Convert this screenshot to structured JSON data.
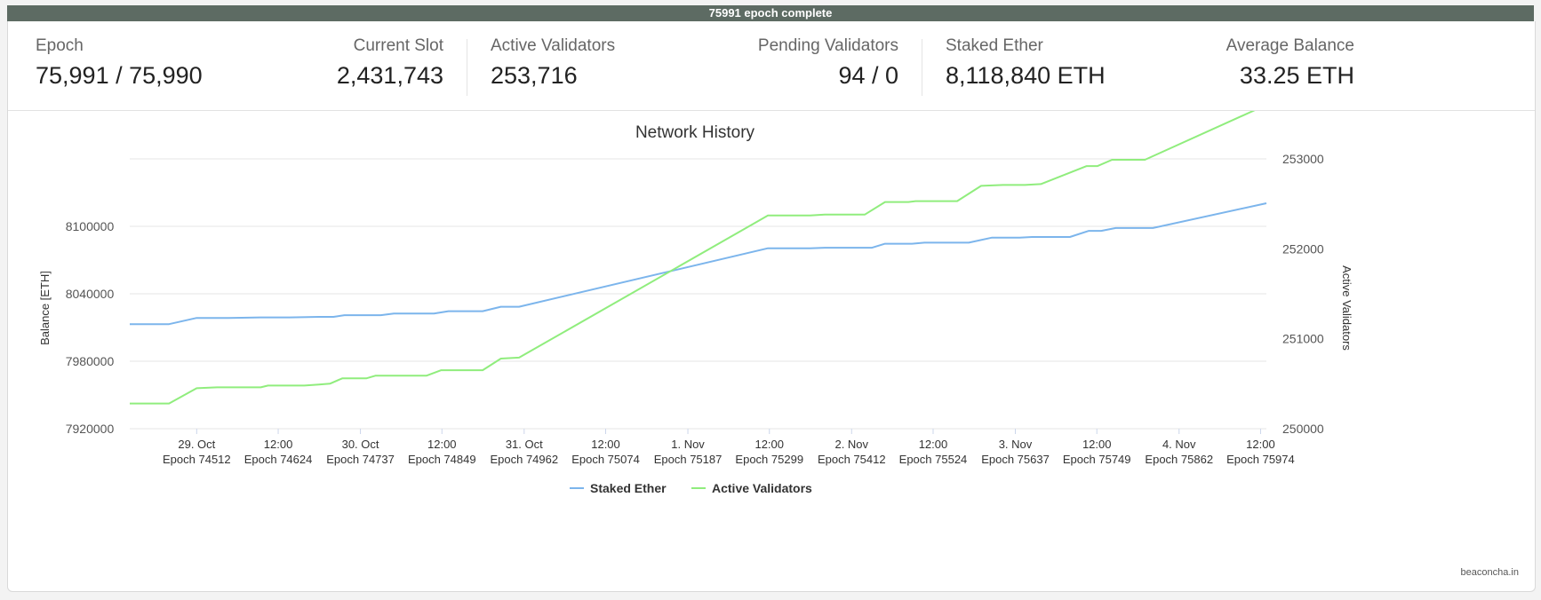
{
  "progress": {
    "label": "75991 epoch complete",
    "fraction": 1.0
  },
  "stats": {
    "epoch": {
      "label": "Epoch",
      "value": "75,991 / 75,990"
    },
    "current_slot": {
      "label": "Current Slot",
      "value": "2,431,743"
    },
    "active_validators": {
      "label": "Active Validators",
      "value": "253,716"
    },
    "pending_validators": {
      "label": "Pending Validators",
      "value": "94 / 0"
    },
    "staked_ether": {
      "label": "Staked Ether",
      "value": "8,118,840 ETH"
    },
    "average_balance": {
      "label": "Average Balance",
      "value": "33.25 ETH"
    }
  },
  "credit": "beaconcha.in",
  "chart_data": {
    "type": "line",
    "title": "Network History",
    "ylabel": "Balance [ETH]",
    "y2label": "Active Validators",
    "ylim": [
      7920000,
      8160000
    ],
    "y_ticks": [
      "7920000",
      "7980000",
      "8040000",
      "8100000"
    ],
    "y_tick_values": [
      7920000,
      7980000,
      8040000,
      8100000
    ],
    "y2lim": [
      250000,
      253000
    ],
    "y2_ticks": [
      "250000",
      "251000",
      "252000",
      "253000"
    ],
    "y2_tick_values": [
      250000,
      251000,
      252000,
      253000
    ],
    "x_tick_epochs": [
      74512,
      74624,
      74737,
      74849,
      74962,
      75074,
      75187,
      75299,
      75412,
      75524,
      75637,
      75749,
      75862,
      75974
    ],
    "x_tick_dates": [
      "29. Oct",
      "12:00",
      "30. Oct",
      "12:00",
      "31. Oct",
      "12:00",
      "1. Nov",
      "12:00",
      "2. Nov",
      "12:00",
      "3. Nov",
      "12:00",
      "4. Nov",
      "12:00"
    ],
    "x_tick_labels": [
      "Epoch 74512",
      "Epoch 74624",
      "Epoch 74737",
      "Epoch 74849",
      "Epoch 74962",
      "Epoch 75074",
      "Epoch 75187",
      "Epoch 75299",
      "Epoch 75412",
      "Epoch 75524",
      "Epoch 75637",
      "Epoch 75749",
      "Epoch 75862",
      "Epoch 75974"
    ],
    "xlim": [
      74420,
      75982
    ],
    "grid": true,
    "legend_position": "bottom-center",
    "series": [
      {
        "name": "Staked Ether",
        "axis": "left",
        "color": "#7cb5ec",
        "points": [
          [
            74420,
            8013000
          ],
          [
            74474,
            8013000
          ],
          [
            74512,
            8018500
          ],
          [
            74556,
            8018500
          ],
          [
            74600,
            8019000
          ],
          [
            74640,
            8019000
          ],
          [
            74680,
            8019500
          ],
          [
            74700,
            8019500
          ],
          [
            74715,
            8021000
          ],
          [
            74765,
            8021000
          ],
          [
            74783,
            8022500
          ],
          [
            74838,
            8022500
          ],
          [
            74858,
            8024500
          ],
          [
            74905,
            8024500
          ],
          [
            74930,
            8028500
          ],
          [
            74955,
            8028500
          ],
          [
            75297,
            8080500
          ],
          [
            75355,
            8080500
          ],
          [
            75375,
            8081000
          ],
          [
            75440,
            8081000
          ],
          [
            75458,
            8084500
          ],
          [
            75495,
            8084500
          ],
          [
            75512,
            8085500
          ],
          [
            75573,
            8085500
          ],
          [
            75605,
            8090000
          ],
          [
            75643,
            8090000
          ],
          [
            75660,
            8090500
          ],
          [
            75712,
            8090500
          ],
          [
            75738,
            8096000
          ],
          [
            75755,
            8096000
          ],
          [
            75775,
            8098500
          ],
          [
            75826,
            8098500
          ],
          [
            75982,
            8120500
          ]
        ]
      },
      {
        "name": "Active Validators",
        "axis": "right",
        "color": "#90ed7d",
        "points": [
          [
            74420,
            250280
          ],
          [
            74474,
            250280
          ],
          [
            74512,
            250450
          ],
          [
            74540,
            250460
          ],
          [
            74600,
            250460
          ],
          [
            74610,
            250480
          ],
          [
            74660,
            250480
          ],
          [
            74680,
            250490
          ],
          [
            74695,
            250500
          ],
          [
            74712,
            250560
          ],
          [
            74745,
            250560
          ],
          [
            74758,
            250590
          ],
          [
            74828,
            250590
          ],
          [
            74848,
            250650
          ],
          [
            74905,
            250650
          ],
          [
            74930,
            250780
          ],
          [
            74955,
            250790
          ],
          [
            75297,
            252370
          ],
          [
            75355,
            252370
          ],
          [
            75375,
            252380
          ],
          [
            75430,
            252380
          ],
          [
            75458,
            252520
          ],
          [
            75490,
            252520
          ],
          [
            75500,
            252530
          ],
          [
            75557,
            252530
          ],
          [
            75590,
            252700
          ],
          [
            75620,
            252710
          ],
          [
            75650,
            252710
          ],
          [
            75672,
            252720
          ],
          [
            75735,
            252920
          ],
          [
            75750,
            252920
          ],
          [
            75770,
            252990
          ],
          [
            75815,
            252990
          ],
          [
            75982,
            253600
          ]
        ]
      }
    ]
  }
}
